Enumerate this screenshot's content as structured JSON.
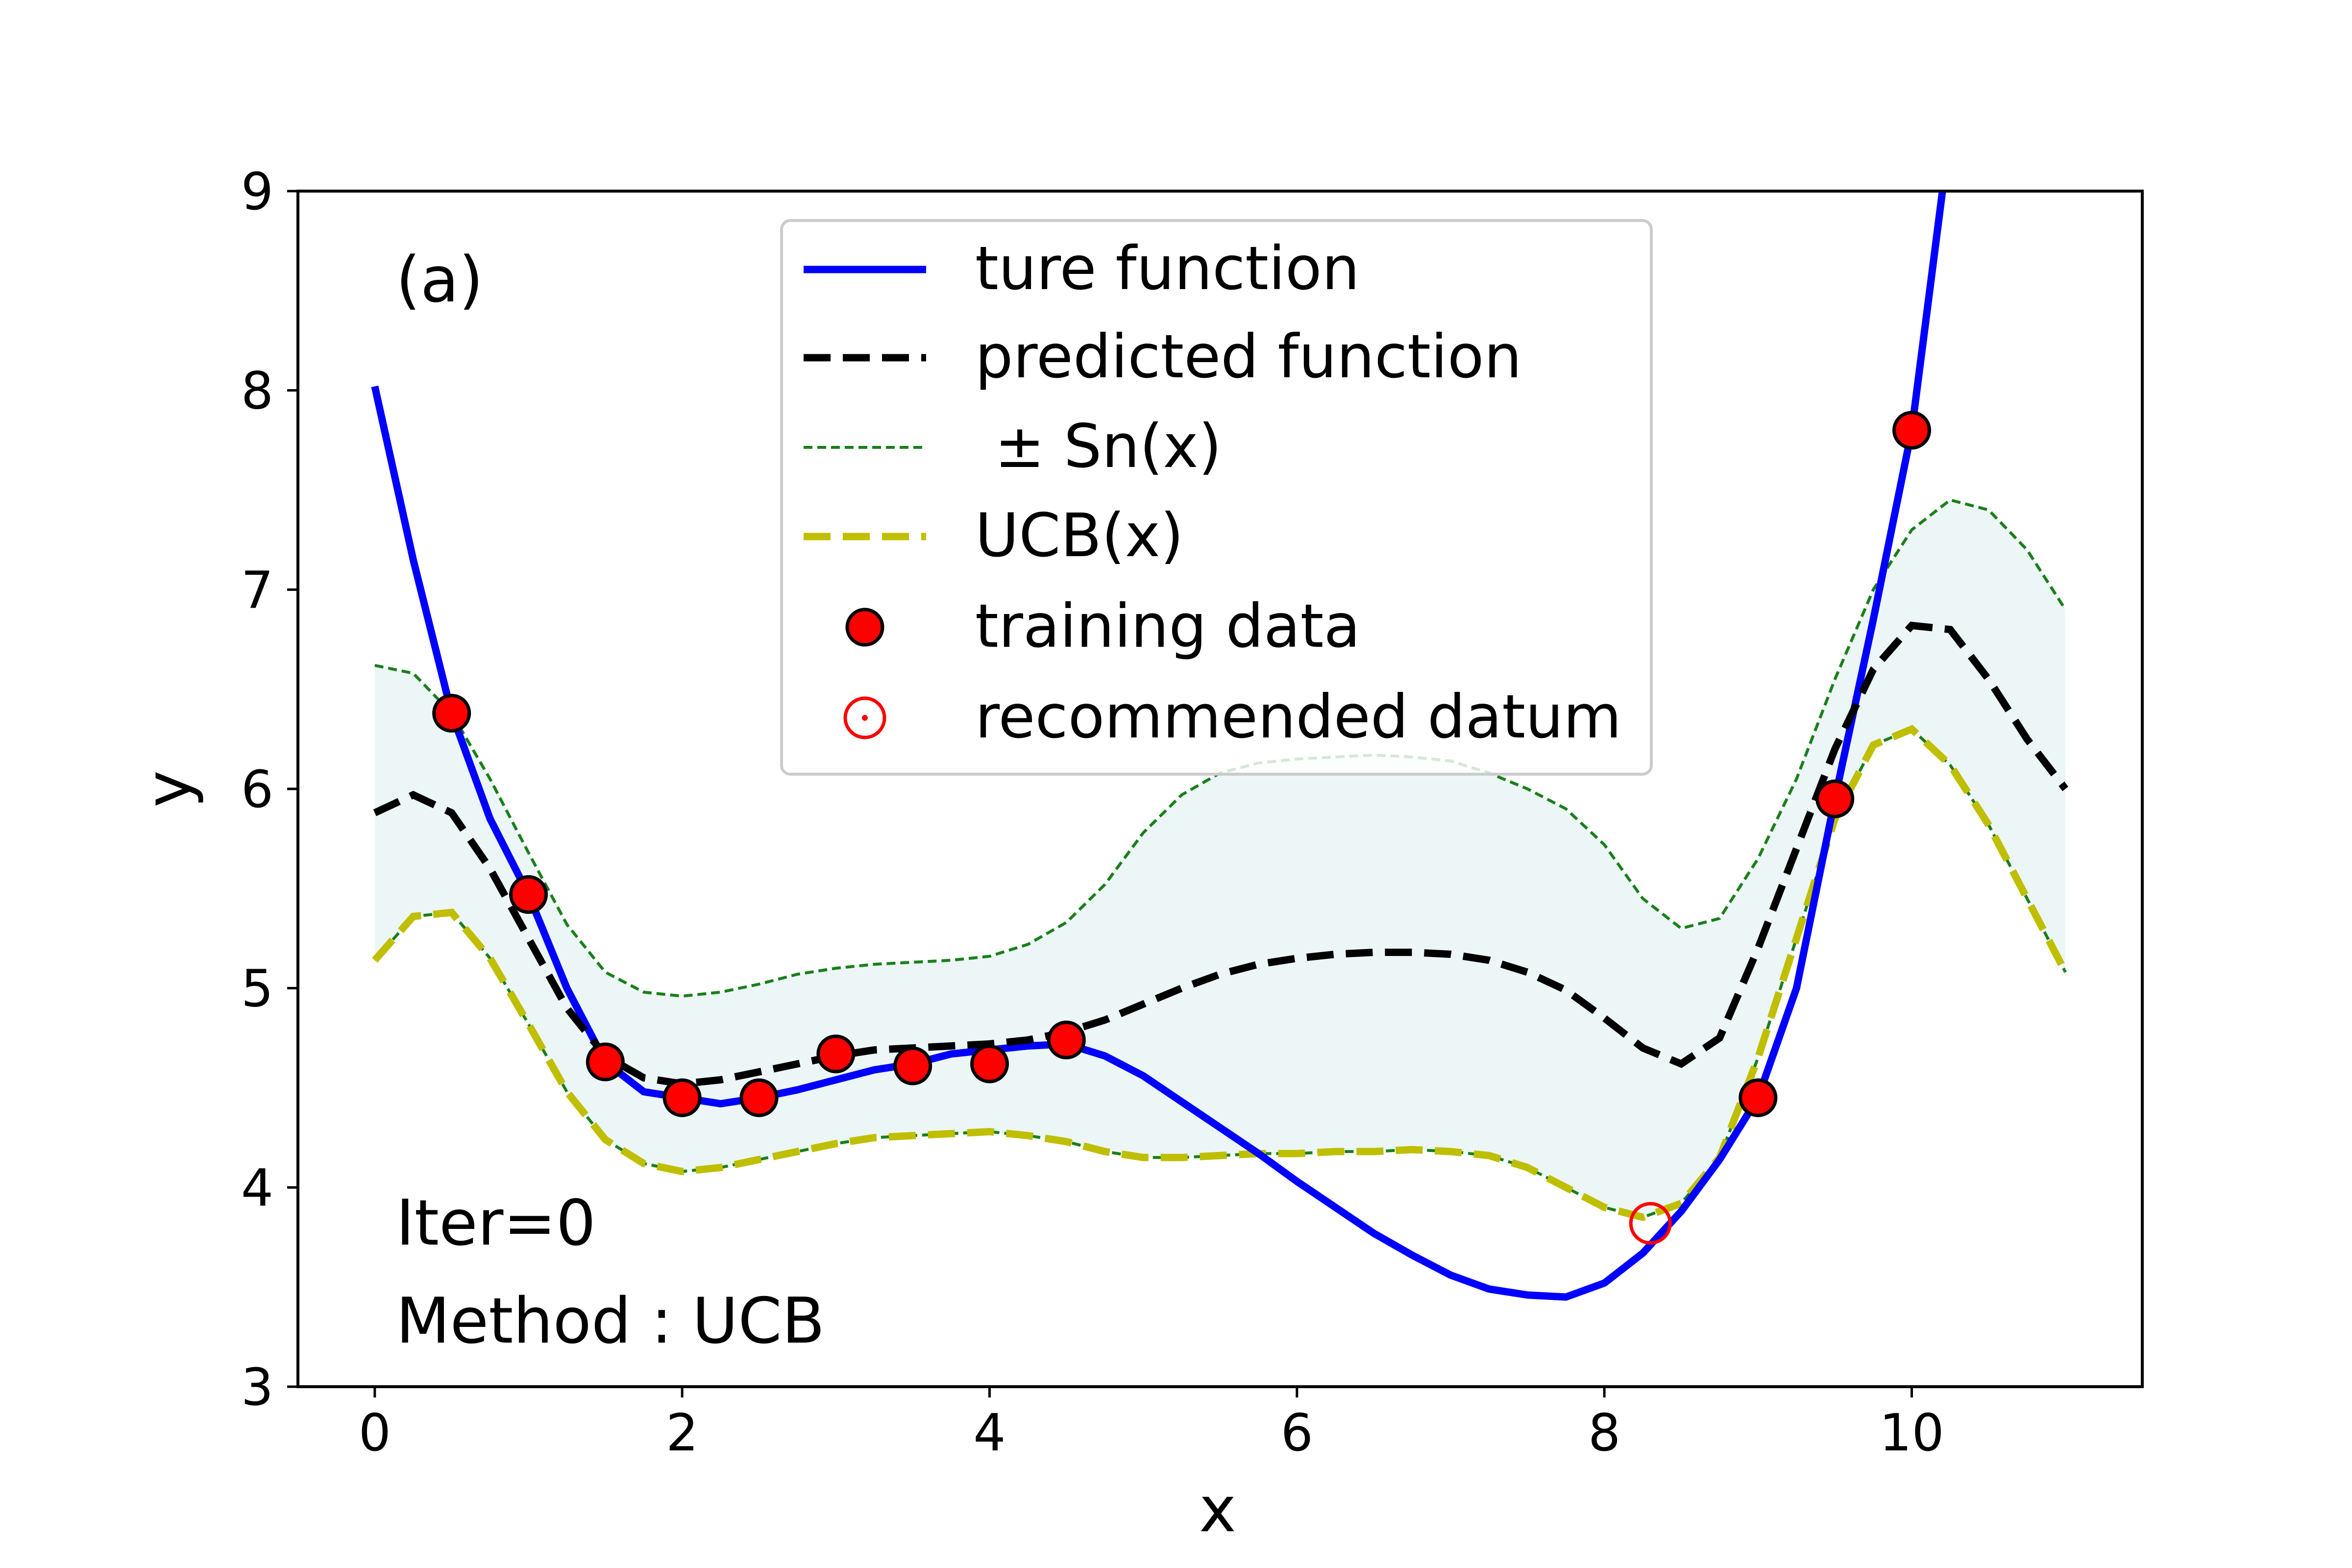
{
  "chart_data": {
    "type": "line",
    "xlabel": "x",
    "ylabel": "y",
    "xlim": [
      -0.5,
      11.5
    ],
    "ylim": [
      3,
      9
    ],
    "xticks": [
      "0",
      "2",
      "4",
      "6",
      "8",
      "10"
    ],
    "yticks": [
      "3",
      "4",
      "5",
      "6",
      "7",
      "8",
      "9"
    ],
    "grid": false,
    "legend_position": "top-center",
    "annotations": {
      "panel": "(a)",
      "iter": "Iter=0",
      "method": "Method : UCB"
    },
    "series": [
      {
        "name": "ture function",
        "style": "solid",
        "color": "#0000ff",
        "x": [
          0,
          0.25,
          0.5,
          0.75,
          1,
          1.25,
          1.5,
          1.75,
          2,
          2.25,
          2.5,
          2.75,
          3,
          3.25,
          3.5,
          3.75,
          4,
          4.25,
          4.5,
          4.75,
          5,
          5.25,
          5.5,
          5.75,
          6,
          6.25,
          6.5,
          6.75,
          7,
          7.25,
          7.5,
          7.75,
          8,
          8.25,
          8.5,
          8.75,
          9,
          9.25,
          9.5,
          9.75,
          10,
          10.1,
          10.2
        ],
        "y": [
          8.02,
          7.15,
          6.38,
          5.85,
          5.47,
          5.0,
          4.63,
          4.48,
          4.45,
          4.42,
          4.45,
          4.49,
          4.54,
          4.59,
          4.62,
          4.67,
          4.69,
          4.71,
          4.72,
          4.66,
          4.56,
          4.43,
          4.3,
          4.17,
          4.03,
          3.9,
          3.77,
          3.66,
          3.56,
          3.49,
          3.46,
          3.45,
          3.52,
          3.67,
          3.88,
          4.14,
          4.45,
          5.0,
          5.95,
          6.85,
          7.8,
          8.4,
          9.0
        ]
      },
      {
        "name": "predicted function",
        "style": "dashed",
        "color": "#000000",
        "x": [
          0,
          0.25,
          0.5,
          0.75,
          1,
          1.25,
          1.5,
          1.75,
          2,
          2.25,
          2.5,
          2.75,
          3,
          3.25,
          3.5,
          3.75,
          4,
          4.25,
          4.5,
          4.75,
          5,
          5.25,
          5.5,
          5.75,
          6,
          6.25,
          6.5,
          6.75,
          7,
          7.25,
          7.5,
          7.75,
          8,
          8.25,
          8.5,
          8.75,
          9,
          9.25,
          9.5,
          9.75,
          10,
          10.25,
          10.5,
          10.75,
          11
        ],
        "y": [
          5.88,
          5.97,
          5.88,
          5.6,
          5.25,
          4.9,
          4.66,
          4.55,
          4.52,
          4.54,
          4.58,
          4.62,
          4.66,
          4.69,
          4.7,
          4.71,
          4.72,
          4.74,
          4.78,
          4.84,
          4.92,
          5.0,
          5.07,
          5.12,
          5.15,
          5.17,
          5.18,
          5.18,
          5.17,
          5.14,
          5.08,
          4.99,
          4.85,
          4.7,
          4.62,
          4.75,
          5.2,
          5.7,
          6.2,
          6.6,
          6.82,
          6.8,
          6.55,
          6.25,
          6.0
        ]
      },
      {
        "name": "± Sn(x)",
        "style": "dotted",
        "color": "#1a7f1a",
        "fill": "#e0f0f0",
        "x": [
          0,
          0.25,
          0.5,
          0.75,
          1,
          1.25,
          1.5,
          1.75,
          2,
          2.25,
          2.5,
          2.75,
          3,
          3.25,
          3.5,
          3.75,
          4,
          4.25,
          4.5,
          4.75,
          5,
          5.25,
          5.5,
          5.75,
          6,
          6.25,
          6.5,
          6.75,
          7,
          7.25,
          7.5,
          7.75,
          8,
          8.25,
          8.5,
          8.75,
          9,
          9.25,
          9.5,
          9.75,
          10,
          10.25,
          10.5,
          10.75,
          11
        ],
        "upper": [
          6.62,
          6.58,
          6.38,
          6.05,
          5.68,
          5.32,
          5.08,
          4.98,
          4.96,
          4.98,
          5.02,
          5.07,
          5.1,
          5.12,
          5.13,
          5.14,
          5.16,
          5.22,
          5.33,
          5.52,
          5.78,
          5.97,
          6.08,
          6.13,
          6.15,
          6.16,
          6.17,
          6.16,
          6.14,
          6.08,
          6.0,
          5.9,
          5.72,
          5.45,
          5.3,
          5.35,
          5.65,
          6.05,
          6.55,
          7.0,
          7.3,
          7.45,
          7.4,
          7.2,
          6.9
        ],
        "lower": [
          5.14,
          5.36,
          5.38,
          5.15,
          4.82,
          4.48,
          4.24,
          4.12,
          4.08,
          4.1,
          4.14,
          4.18,
          4.22,
          4.25,
          4.26,
          4.27,
          4.28,
          4.26,
          4.23,
          4.18,
          4.15,
          4.15,
          4.16,
          4.17,
          4.17,
          4.18,
          4.18,
          4.19,
          4.18,
          4.16,
          4.1,
          4.0,
          3.9,
          3.85,
          3.92,
          4.15,
          4.65,
          5.25,
          5.85,
          6.22,
          6.3,
          6.12,
          5.82,
          5.45,
          5.08
        ]
      },
      {
        "name": "UCB(x)",
        "style": "dashed",
        "color": "#bfbf00",
        "x": [
          0,
          0.25,
          0.5,
          0.75,
          1,
          1.25,
          1.5,
          1.75,
          2,
          2.25,
          2.5,
          2.75,
          3,
          3.25,
          3.5,
          3.75,
          4,
          4.25,
          4.5,
          4.75,
          5,
          5.25,
          5.5,
          5.75,
          6,
          6.25,
          6.5,
          6.75,
          7,
          7.25,
          7.5,
          7.75,
          8,
          8.25,
          8.5,
          8.75,
          9,
          9.25,
          9.5,
          9.75,
          10,
          10.25,
          10.5,
          10.75,
          11
        ],
        "y": [
          5.14,
          5.36,
          5.38,
          5.15,
          4.82,
          4.48,
          4.24,
          4.12,
          4.08,
          4.1,
          4.14,
          4.18,
          4.22,
          4.25,
          4.26,
          4.27,
          4.28,
          4.26,
          4.23,
          4.18,
          4.15,
          4.15,
          4.16,
          4.17,
          4.17,
          4.18,
          4.18,
          4.19,
          4.18,
          4.16,
          4.1,
          4.0,
          3.9,
          3.85,
          3.92,
          4.15,
          4.65,
          5.25,
          5.85,
          6.22,
          6.3,
          6.12,
          5.82,
          5.45,
          5.08
        ]
      }
    ],
    "training_data": {
      "name": "training data",
      "color": "#ff0000",
      "x": [
        0.5,
        1,
        1.5,
        2,
        2.5,
        3,
        3.5,
        4,
        4.5,
        9,
        9.5,
        10
      ],
      "y": [
        6.38,
        5.47,
        4.63,
        4.45,
        4.45,
        4.67,
        4.61,
        4.62,
        4.74,
        4.45,
        5.95,
        7.8
      ]
    },
    "recommended": {
      "name": "recommended datum",
      "color": "#ff0000",
      "x": 8.3,
      "y": 3.82
    }
  }
}
